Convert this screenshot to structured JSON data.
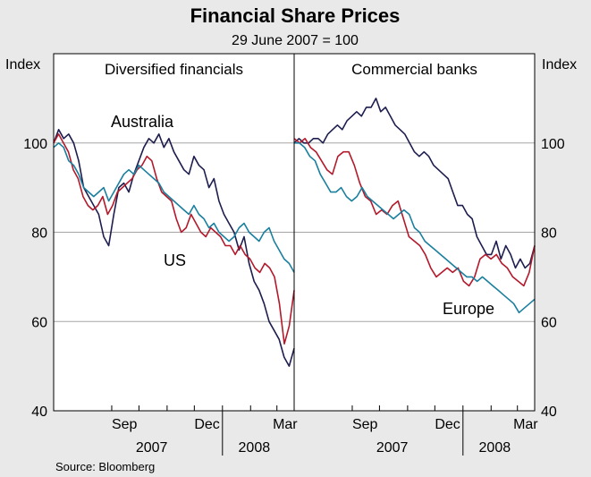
{
  "chart_data": {
    "type": "line",
    "title": "Financial Share Prices",
    "subtitle": "29 June 2007 = 100",
    "ylabel_left": "Index",
    "ylabel_right": "Index",
    "ylim": [
      40,
      120
    ],
    "yticks": [
      40,
      60,
      80,
      100
    ],
    "gridlines": [
      60,
      80,
      100
    ],
    "x_range": [
      "2007-06-29",
      "2008-03-20"
    ],
    "x_tick_labels": [
      "Sep",
      "Dec",
      "Mar"
    ],
    "year_labels": [
      "2007",
      "2008"
    ],
    "source": "Source: Bloomberg",
    "colors": {
      "Australia": "#1d1d4f",
      "US": "#b3192b",
      "Europe": "#1a7f9e"
    },
    "panels": [
      {
        "title": "Diversified financials",
        "annotations": [
          {
            "text": "Australia",
            "series": "Australia"
          },
          {
            "text": "US",
            "series": "US"
          }
        ],
        "series": [
          {
            "name": "Australia",
            "values": [
              100,
              103,
              101,
              102,
              100,
              96,
              90,
              88,
              86,
              84,
              79,
              77,
              84,
              90,
              91,
              89,
              93,
              96,
              99,
              101,
              100,
              102,
              99,
              101,
              98,
              96,
              94,
              93,
              97,
              95,
              94,
              90,
              92,
              87,
              84,
              82,
              80,
              76,
              79,
              73,
              69,
              67,
              64,
              60,
              58,
              56,
              52,
              50,
              54
            ]
          },
          {
            "name": "US",
            "values": [
              100,
              102,
              100,
              98,
              94,
              92,
              88,
              86,
              85,
              86,
              88,
              84,
              86,
              89,
              90,
              91,
              92,
              94,
              95,
              97,
              96,
              92,
              89,
              88,
              87,
              83,
              80,
              81,
              84,
              82,
              80,
              79,
              81,
              80,
              79,
              77,
              77,
              75,
              77,
              75,
              74,
              72,
              71,
              73,
              72,
              70,
              64,
              55,
              59,
              67
            ]
          },
          {
            "name": "Europe",
            "values": [
              99,
              100,
              99,
              96,
              95,
              93,
              90,
              89,
              88,
              89,
              90,
              87,
              89,
              91,
              93,
              94,
              93,
              95,
              94,
              93,
              92,
              91,
              89,
              88,
              87,
              86,
              85,
              84,
              86,
              84,
              83,
              81,
              82,
              80,
              79,
              78,
              79,
              81,
              82,
              80,
              79,
              78,
              80,
              81,
              78,
              76,
              74,
              73,
              71
            ]
          }
        ]
      },
      {
        "title": "Commercial banks",
        "annotations": [
          {
            "text": "Europe",
            "series": "Europe"
          }
        ],
        "series": [
          {
            "name": "Australia",
            "values": [
              100,
              101,
              100,
              100,
              101,
              101,
              100,
              102,
              103,
              104,
              103,
              105,
              106,
              107,
              106,
              108,
              108,
              110,
              107,
              108,
              106,
              104,
              103,
              102,
              100,
              98,
              97,
              98,
              97,
              95,
              94,
              93,
              92,
              89,
              86,
              86,
              84,
              83,
              79,
              77,
              75,
              75,
              78,
              74,
              77,
              75,
              72,
              74,
              72,
              73,
              77
            ]
          },
          {
            "name": "US",
            "values": [
              101,
              100,
              101,
              99,
              98,
              96,
              94,
              93,
              97,
              98,
              98,
              95,
              91,
              88,
              87,
              84,
              85,
              84,
              86,
              87,
              83,
              79,
              78,
              77,
              75,
              72,
              70,
              71,
              72,
              71,
              72,
              69,
              68,
              70,
              74,
              75,
              74,
              75,
              73,
              72,
              70,
              69,
              68,
              71,
              77
            ]
          },
          {
            "name": "Europe",
            "values": [
              100,
              100,
              99,
              97,
              96,
              93,
              91,
              89,
              89,
              90,
              88,
              87,
              88,
              90,
              88,
              87,
              86,
              85,
              84,
              83,
              84,
              85,
              84,
              81,
              80,
              78,
              77,
              76,
              75,
              74,
              73,
              72,
              71,
              70,
              70,
              69,
              70,
              69,
              68,
              67,
              66,
              65,
              64,
              62,
              63,
              64,
              65
            ]
          }
        ]
      }
    ]
  }
}
